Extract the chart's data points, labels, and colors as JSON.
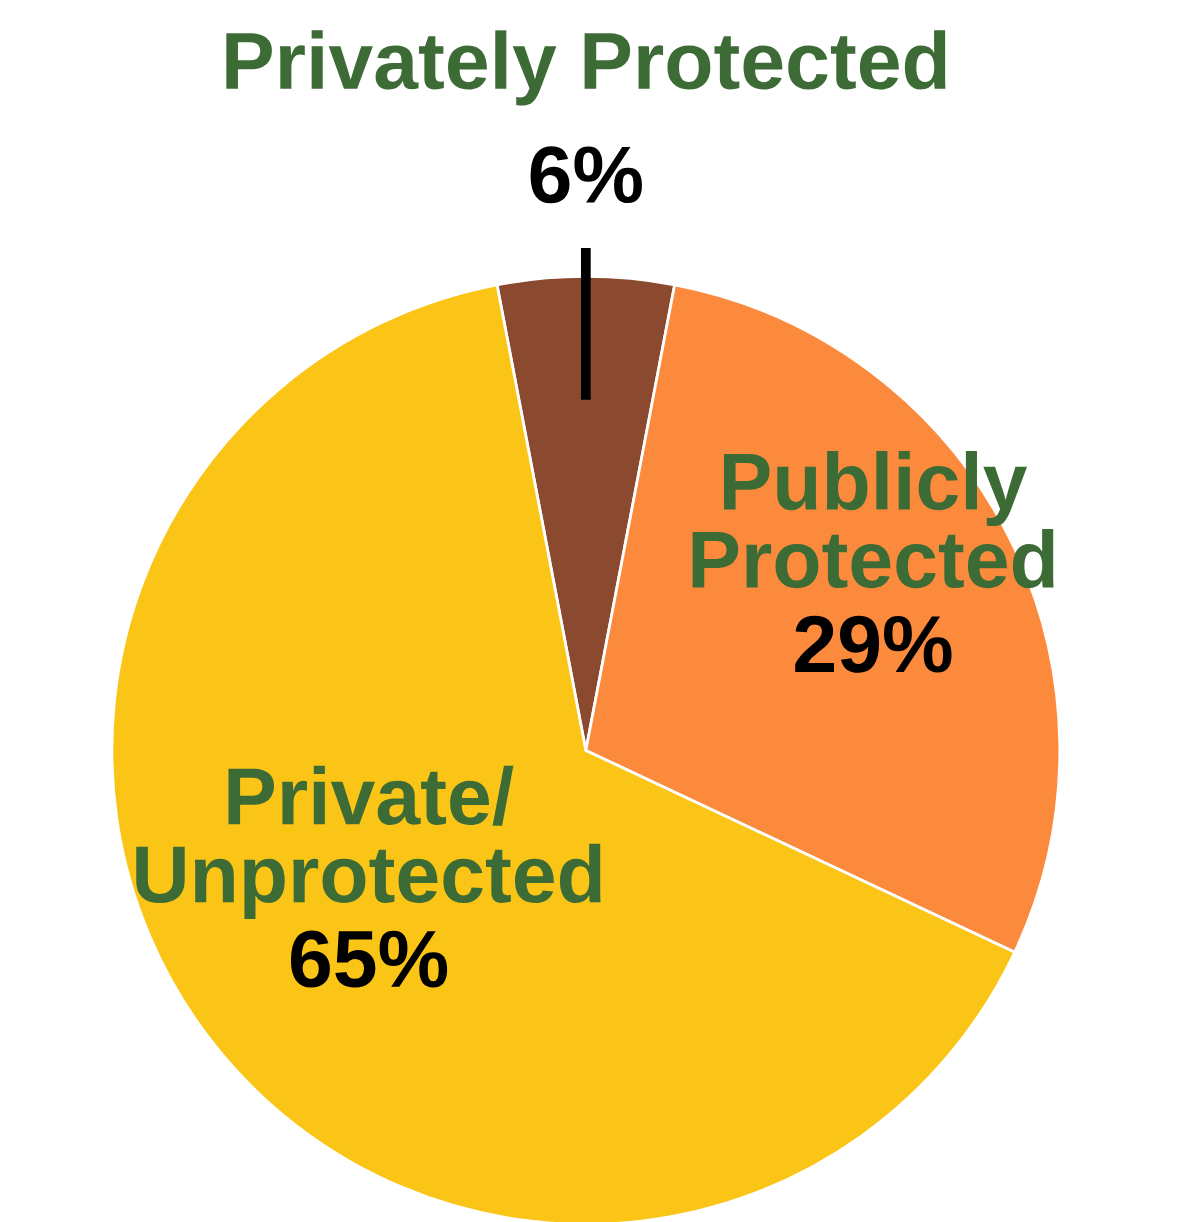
{
  "chart_data": {
    "type": "pie",
    "categories": [
      "Privately Protected",
      "Publicly\nProtected",
      "Private/\nUnprotected"
    ],
    "values": [
      6,
      29,
      65
    ],
    "value_labels": [
      "6%",
      "29%",
      "65%"
    ],
    "colors": [
      "#8b4a2f",
      "#fb8a3c",
      "#fbc517"
    ]
  }
}
